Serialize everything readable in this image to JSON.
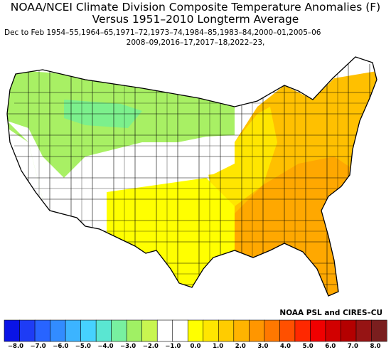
{
  "title_line1": "NOAA/NCEI Climate Division Composite Temperature Anomalies (F)",
  "title_line2": "Versus 1951–2010 Longterm Average",
  "subtitle_line1": "Dec to Feb  1954–55,1964–65,1971–72,1973–74,1984–85,1983–84,2000–01,2005–06",
  "subtitle_line2": "2008–09,2016–17,2017–18,2022–23,",
  "credit": "NOAA PSL and CIRES–CU",
  "legend": {
    "tick_labels": [
      "−8.0",
      "−7.0",
      "−6.0",
      "−5.0",
      "−4.0",
      "−3.0",
      "−2.0",
      "−1.0",
      "0.0",
      "1.0",
      "2.0",
      "3.0",
      "4.0",
      "5.0",
      "6.0",
      "7.0",
      "8.0"
    ],
    "colors": [
      "#0a14e6",
      "#1e3cf5",
      "#2864ff",
      "#328cff",
      "#3cb4ff",
      "#46d2ff",
      "#5ae6d2",
      "#78f0a0",
      "#a0f064",
      "#c8f550",
      "#ffffff",
      "#ffffff",
      "#ffff00",
      "#ffe600",
      "#ffcc00",
      "#ffb400",
      "#ff9600",
      "#ff7800",
      "#ff5000",
      "#ff2800",
      "#f00000",
      "#d20000",
      "#b40000",
      "#961414",
      "#7a1e1e"
    ]
  },
  "map_regions": {
    "northwest_band": "#a8f064",
    "northern_plains": "#a8f064",
    "montana_interior": "#7cf08c",
    "neutral_west": "#ffffff",
    "central_plains": "#ffffff",
    "southwest_yellow": "#ffff00",
    "midwest_yellow": "#ffe600",
    "east_orange": "#ffc000",
    "southeast_deep": "#ffa800"
  }
}
